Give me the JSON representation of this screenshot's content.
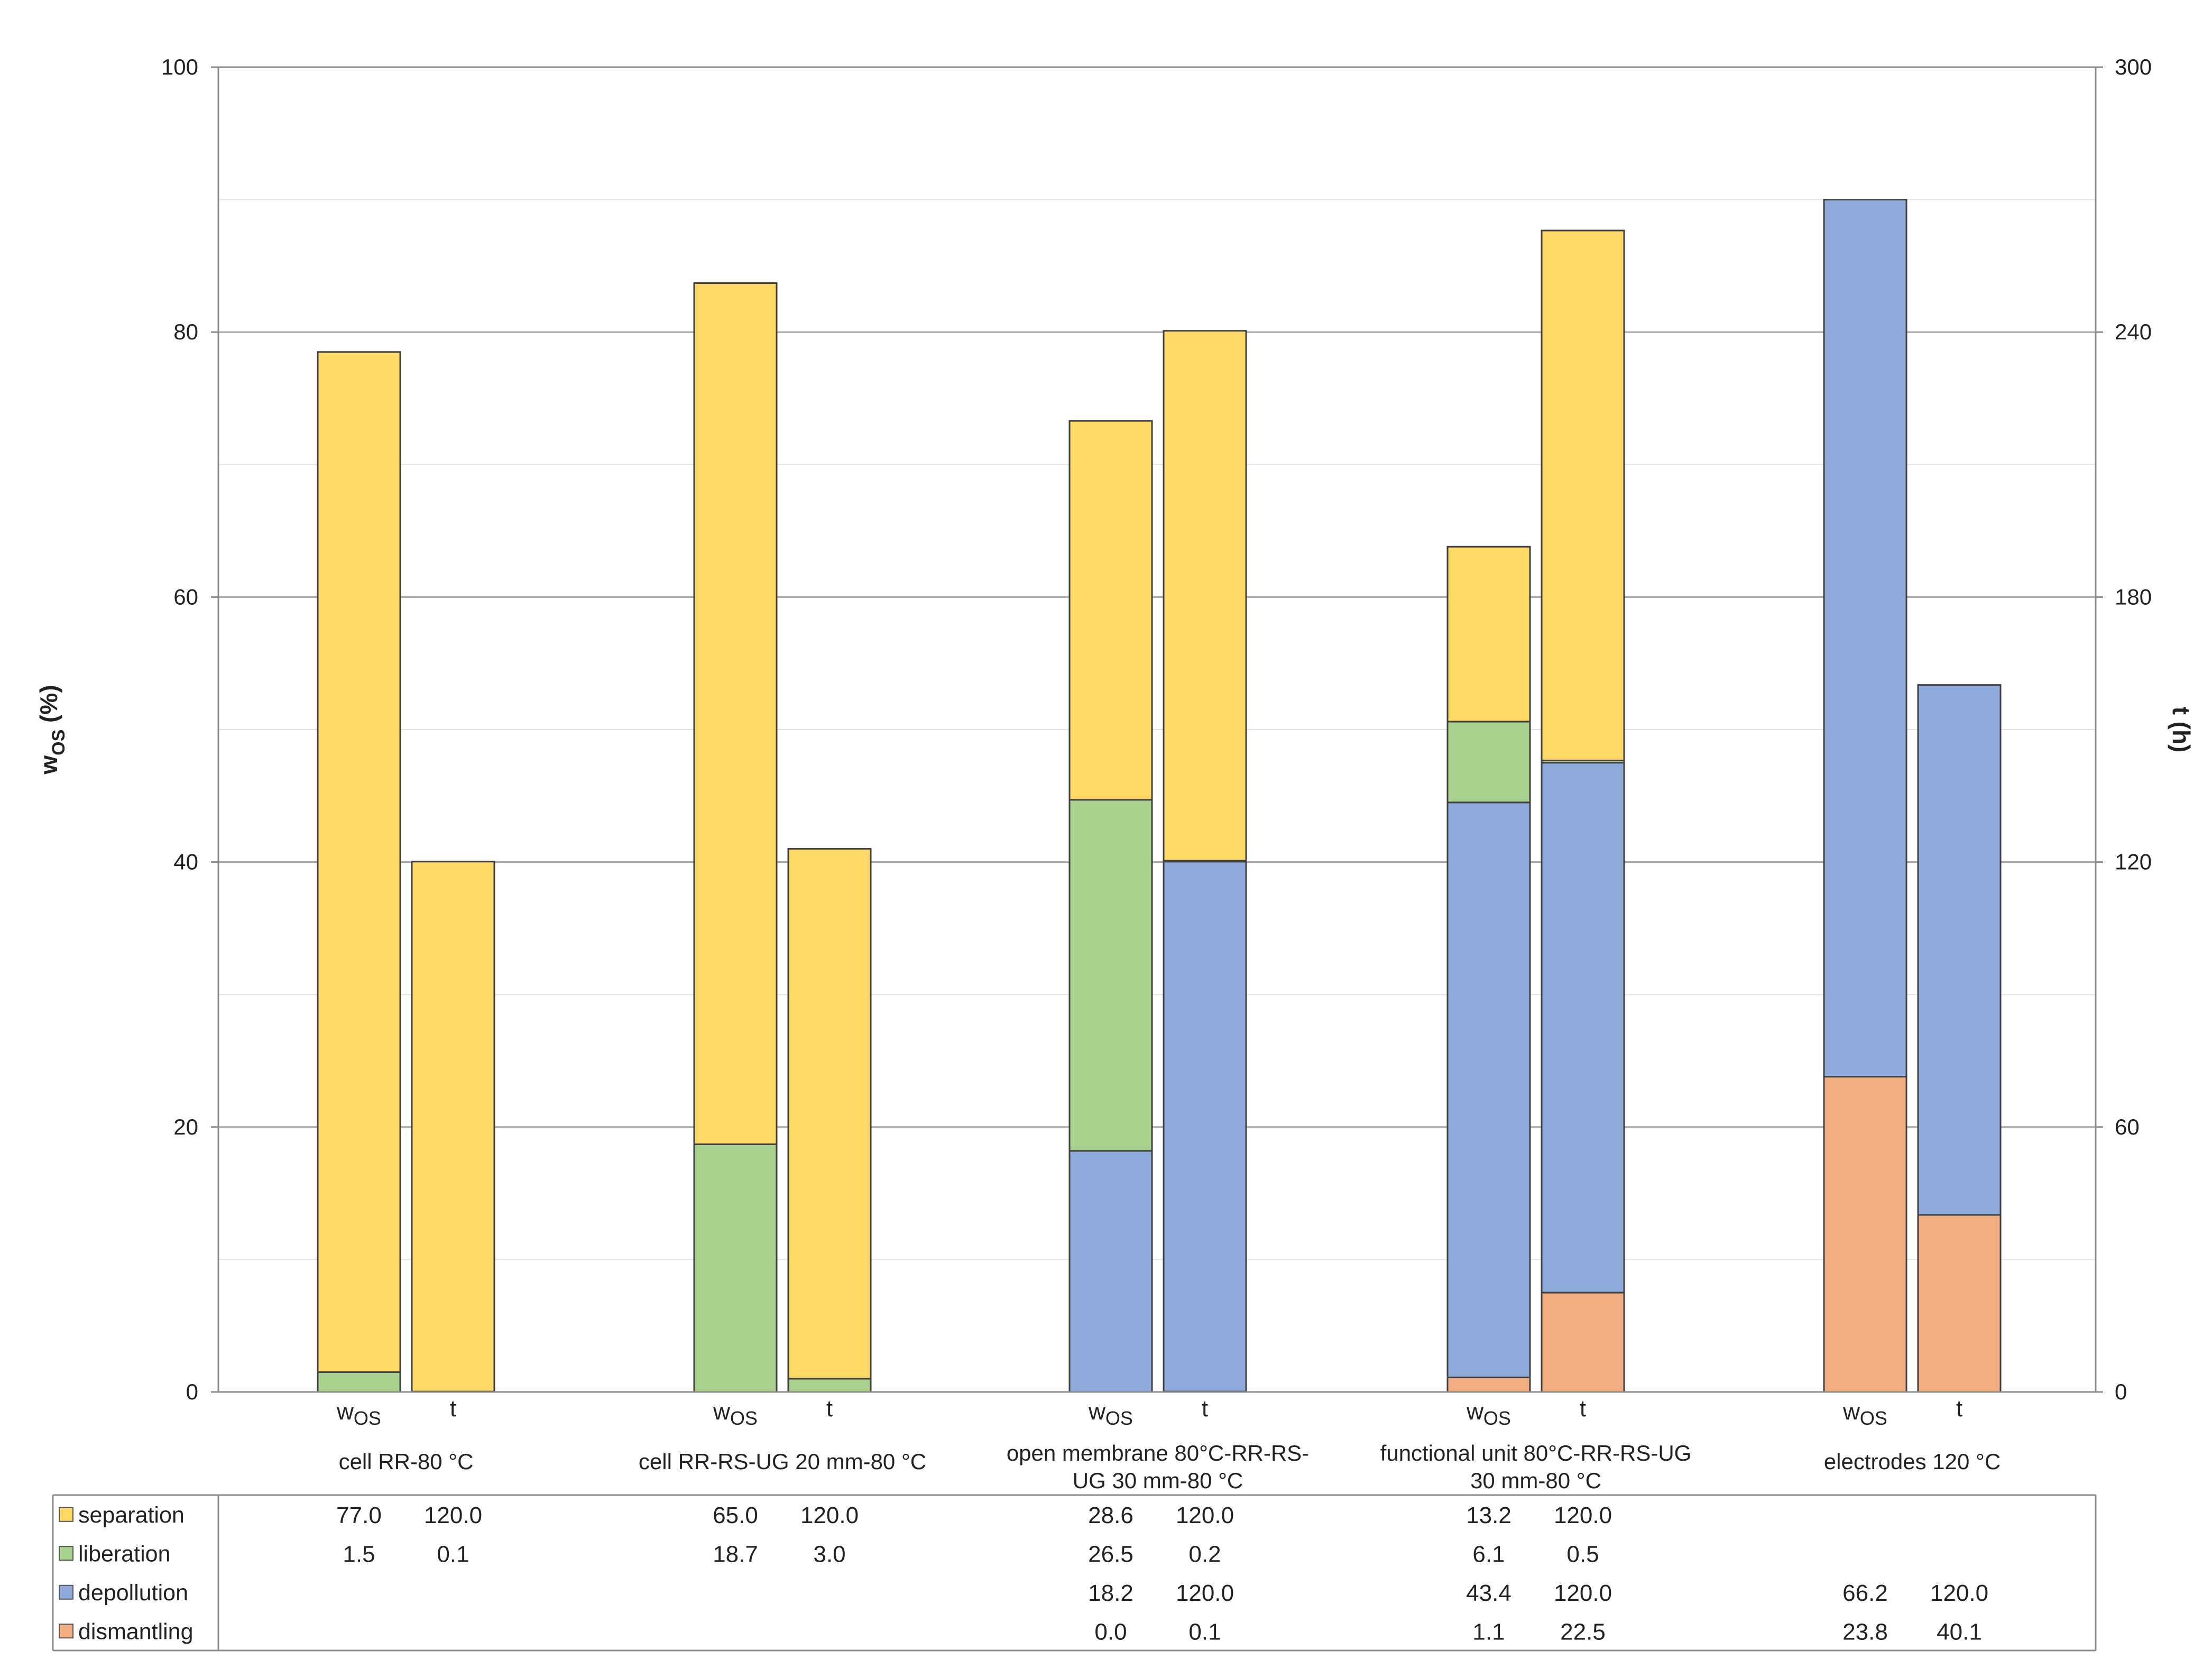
{
  "chart_data": {
    "type": "bar",
    "stacked": true,
    "ylabel_left": "w",
    "ylabel_left_sub": "OS",
    "ylabel_left_unit": " (%)",
    "ylabel_right": "t (h)",
    "ylim_left": [
      0,
      100
    ],
    "ylim_right": [
      0,
      300
    ],
    "yticks_left": [
      "0",
      "20",
      "40",
      "60",
      "80",
      "100"
    ],
    "yticks_right": [
      "0",
      "60",
      "120",
      "180",
      "240",
      "300"
    ],
    "grid": true,
    "bar_labels": {
      "w_main": "w",
      "w_sub": "OS",
      "t": "t"
    },
    "groups": [
      {
        "label": [
          "cell RR-80 °C"
        ]
      },
      {
        "label": [
          "cell RR-RS-UG 20 mm-80 °C"
        ]
      },
      {
        "label": [
          "open membrane 80°C-RR-RS-",
          "UG 30 mm-80 °C"
        ]
      },
      {
        "label": [
          "functional unit 80°C-RR-RS-UG",
          "30 mm-80 °C"
        ]
      },
      {
        "label": [
          "electrodes 120 °C"
        ]
      }
    ],
    "series": [
      {
        "name": "dismantling",
        "color": "#f2ae80",
        "w_os": [
          null,
          null,
          0.0,
          1.1,
          23.8
        ],
        "t": [
          null,
          null,
          0.1,
          22.5,
          40.1
        ],
        "w_os_text": [
          "",
          "",
          "0.0",
          "1.1",
          "23.8"
        ],
        "t_text": [
          "",
          "",
          "0.1",
          "22.5",
          "40.1"
        ]
      },
      {
        "name": "depollution",
        "color": "#8eaadb",
        "w_os": [
          null,
          null,
          18.2,
          43.4,
          66.2
        ],
        "t": [
          null,
          null,
          120.0,
          120.0,
          120.0
        ],
        "w_os_text": [
          "",
          "",
          "18.2",
          "43.4",
          "66.2"
        ],
        "t_text": [
          "",
          "",
          "120.0",
          "120.0",
          "120.0"
        ]
      },
      {
        "name": "liberation",
        "color": "#a9d18e",
        "w_os": [
          1.5,
          18.7,
          26.5,
          6.1,
          null
        ],
        "t": [
          0.1,
          3.0,
          0.2,
          0.5,
          null
        ],
        "w_os_text": [
          "1.5",
          "18.7",
          "26.5",
          "6.1",
          ""
        ],
        "t_text": [
          "0.1",
          "3.0",
          "0.2",
          "0.5",
          ""
        ]
      },
      {
        "name": "separation",
        "color": "#ffd966",
        "w_os": [
          77.0,
          65.0,
          28.6,
          13.2,
          null
        ],
        "t": [
          120.0,
          120.0,
          120.0,
          120.0,
          null
        ],
        "w_os_text": [
          "77.0",
          "65.0",
          "28.6",
          "13.2",
          ""
        ],
        "t_text": [
          "120.0",
          "120.0",
          "120.0",
          "120.0",
          ""
        ]
      }
    ],
    "table_order": [
      "separation",
      "liberation",
      "depollution",
      "dismantling"
    ]
  }
}
